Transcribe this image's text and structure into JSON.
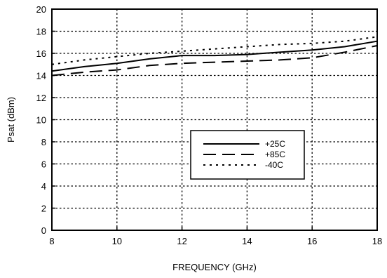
{
  "chart_data": {
    "type": "line",
    "title": "",
    "xlabel": "FREQUENCY (GHz)",
    "ylabel": "Psat (dBm)",
    "xlim": [
      8,
      18
    ],
    "ylim": [
      0,
      20
    ],
    "xticks": [
      8,
      10,
      12,
      14,
      16,
      18
    ],
    "yticks": [
      0,
      2,
      4,
      6,
      8,
      10,
      12,
      14,
      16,
      18,
      20
    ],
    "grid": true,
    "legend_position": "center-right",
    "series": [
      {
        "name": "+25C",
        "line_style": "solid",
        "x": [
          8,
          9,
          10,
          11,
          12,
          13,
          14,
          15,
          16,
          17,
          18
        ],
        "y": [
          14.4,
          14.8,
          15.1,
          15.5,
          15.8,
          15.8,
          15.9,
          16.1,
          16.3,
          16.6,
          17.1
        ]
      },
      {
        "name": "+85C",
        "line_style": "dashed",
        "x": [
          8,
          9,
          10,
          11,
          12,
          13,
          14,
          15,
          16,
          17,
          18
        ],
        "y": [
          14.0,
          14.3,
          14.5,
          14.9,
          15.1,
          15.2,
          15.3,
          15.4,
          15.6,
          16.1,
          16.7
        ]
      },
      {
        "name": "-40C",
        "line_style": "dotted",
        "x": [
          8,
          9,
          10,
          11,
          12,
          13,
          14,
          15,
          16,
          17,
          18
        ],
        "y": [
          15.0,
          15.4,
          15.7,
          16.0,
          16.2,
          16.4,
          16.6,
          16.8,
          16.9,
          17.1,
          17.5
        ]
      }
    ]
  }
}
